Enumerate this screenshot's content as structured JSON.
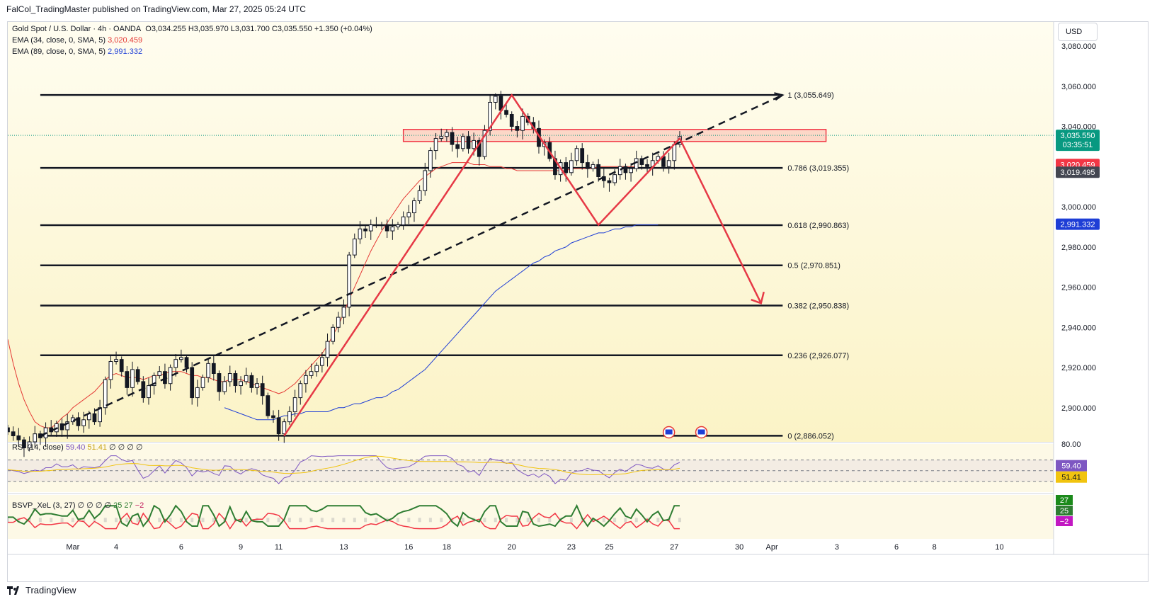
{
  "header": {
    "publisher": "FalCol_TradingMaster published on TradingView.com, Mar 27, 2025 05:24 UTC"
  },
  "footer": {
    "brand": "TradingView"
  },
  "currency_button": "USD",
  "legend": {
    "symbol": "Gold Spot / U.S. Dollar · 4h · OANDA",
    "ohlc": "O3,034.255  H3,035.970  L3,031.700  C3,035.550  +1.350 (+0.04%)",
    "ema34_label": "EMA (34, close, 0, SMA, 5)",
    "ema34_value": "3,020.459",
    "ema89_label": "EMA (89, close, 0, SMA, 5)",
    "ema89_value": "2,991.332",
    "rsi_label": "RSI (14, close)",
    "rsi_v1": "59.40",
    "rsi_v2": "51.41",
    "rsi_rest": "∅ ∅ ∅ ∅",
    "bsvp_label": "BSVP_XeL (3, 27)",
    "bsvp_rest": "∅ ∅ ∅ ∅",
    "bsvp_v1": "25",
    "bsvp_v2": "27",
    "bsvp_v3": "−2"
  },
  "colors": {
    "bull": "#089981",
    "bear": "#f23645",
    "candle_body": "#131722",
    "ema34": "#e53935",
    "ema89": "#1e3ed6",
    "pattern": "#e63946",
    "rsi": "#7e57c2",
    "rsi_ma": "#f1c40f"
  },
  "chart_data": {
    "type": "candlestick",
    "title": "Gold Spot / U.S. Dollar · 4h · OANDA",
    "ylim": [
      2883,
      3092
    ],
    "y_ticks": [
      2900,
      2920,
      2940,
      2960,
      2980,
      3000,
      3020,
      3040,
      3060,
      3080
    ],
    "y_tick_labels": [
      "2,900.000",
      "2,920.000",
      "2,940.000",
      "2,960.000",
      "2,980.000",
      "3,000.000",
      "3,020.000",
      "3,040.000",
      "3,060.000",
      "3,080.000"
    ],
    "x_ticks": [
      {
        "label": "Mar",
        "i": 12
      },
      {
        "label": "4",
        "i": 20
      },
      {
        "label": "6",
        "i": 32
      },
      {
        "label": "9",
        "i": 43
      },
      {
        "label": "11",
        "i": 50
      },
      {
        "label": "13",
        "i": 62
      },
      {
        "label": "16",
        "i": 74
      },
      {
        "label": "18",
        "i": 81
      },
      {
        "label": "20",
        "i": 93
      },
      {
        "label": "23",
        "i": 104
      },
      {
        "label": "25",
        "i": 111
      },
      {
        "label": "27",
        "i": 123
      },
      {
        "label": "30",
        "i": 135
      },
      {
        "label": "Apr",
        "i": 141
      },
      {
        "label": "3",
        "i": 153
      },
      {
        "label": "6",
        "i": 164
      },
      {
        "label": "8",
        "i": 171
      },
      {
        "label": "10",
        "i": 183
      }
    ],
    "x_range": [
      0,
      193
    ],
    "fib_levels": [
      {
        "ratio": "1",
        "value": 3055.649,
        "label": "1 (3,055.649)"
      },
      {
        "ratio": "0.786",
        "value": 3019.355,
        "label": "0.786 (3,019.355)"
      },
      {
        "ratio": "0.618",
        "value": 2990.863,
        "label": "0.618 (2,990.863)"
      },
      {
        "ratio": "0.5",
        "value": 2970.851,
        "label": "0.5 (2,970.851)"
      },
      {
        "ratio": "0.382",
        "value": 2950.838,
        "label": "0.382 (2,950.838)"
      },
      {
        "ratio": "0.236",
        "value": 2926.077,
        "label": "0.236 (2,926.077)"
      },
      {
        "ratio": "0",
        "value": 2886.052,
        "label": "0 (2,886.052)"
      }
    ],
    "fib_x_range": [
      6,
      143
    ],
    "resistance_zone": {
      "i_from": 73,
      "i_to": 151,
      "low": 3032.5,
      "high": 3038.5
    },
    "closes": [
      2888,
      2886,
      2884,
      2880,
      2883,
      2887,
      2885,
      2890,
      2888,
      2892,
      2889,
      2893,
      2895,
      2891,
      2894,
      2897,
      2893,
      2900,
      2914,
      2923,
      2924,
      2918,
      2910,
      2919,
      2913,
      2905,
      2911,
      2916,
      2918,
      2912,
      2920,
      2924,
      2925,
      2920,
      2905,
      2910,
      2915,
      2922,
      2917,
      2908,
      2913,
      2917,
      2911,
      2913,
      2916,
      2910,
      2912,
      2906,
      2896,
      2895,
      2887,
      2893,
      2898,
      2905,
      2912,
      2916,
      2918,
      2921,
      2925,
      2933,
      2940,
      2945,
      2950,
      2976,
      2984,
      2989,
      2988,
      2991,
      2991,
      2991,
      2988,
      2990,
      2991,
      2995,
      2997,
      3003,
      3008,
      3018,
      3028,
      3034,
      3035,
      3037,
      3031,
      3029,
      3035,
      3029,
      3033,
      3025,
      3038,
      3052,
      3055,
      3048,
      3046,
      3040,
      3038,
      3045,
      3042,
      3039,
      3030,
      3032,
      3024,
      3016,
      3022,
      3017,
      3023,
      3029,
      3022,
      3019,
      3021,
      3015,
      3013,
      3012,
      3016,
      3020,
      3017,
      3019,
      3024,
      3021,
      3020,
      3023,
      3025,
      3020,
      3023,
      3031,
      3035
    ],
    "current_price": {
      "value": 3035.55,
      "label": "3,035.550",
      "countdown": "03:35:51"
    },
    "price_tags": [
      {
        "value": 3020.459,
        "label": "3,020.459",
        "color": "#f23645"
      },
      {
        "value": 3019.495,
        "label": "3,019.495",
        "color": "#434651"
      },
      {
        "value": 2991.332,
        "label": "2,991.332",
        "color": "#1e3ed6"
      }
    ],
    "ema34": [
      2934,
      2922,
      2912,
      2904,
      2898,
      2893,
      2891,
      2890,
      2890,
      2892,
      2895,
      2897,
      2900,
      2902,
      2904,
      2906,
      2908,
      2911,
      2914,
      2916,
      2917,
      2916,
      2915,
      2915,
      2915,
      2914,
      2915,
      2916,
      2916,
      2917,
      2918,
      2918,
      2918,
      2917,
      2916,
      2916,
      2915,
      2915,
      2914,
      2913,
      2913,
      2914,
      2914,
      2914,
      2913,
      2912,
      2911,
      2910,
      2909,
      2908,
      2907,
      2908,
      2910,
      2912,
      2915,
      2918,
      2921,
      2924,
      2927,
      2931,
      2936,
      2941,
      2947,
      2954,
      2960,
      2966,
      2972,
      2978,
      2983,
      2988,
      2992,
      2996,
      3000,
      3004,
      3007,
      3010,
      3013,
      3015,
      3017,
      3019,
      3020,
      3021,
      3022,
      3022,
      3022,
      3022,
      3021,
      3021,
      3021,
      3020,
      3020,
      3020,
      3019,
      3019,
      3018,
      3018,
      3018,
      3018,
      3018,
      3018,
      3018,
      3018,
      3018,
      3018,
      3019,
      3019,
      3019,
      3019,
      3019,
      3020,
      3020,
      3020,
      3020,
      3020,
      3020,
      3020,
      3020
    ],
    "ema_start_index": 0,
    "ema89": [
      2900,
      2899,
      2898,
      2897,
      2896,
      2895,
      2894,
      2894,
      2894,
      2894,
      2895,
      2896,
      2896,
      2897,
      2897,
      2898,
      2898,
      2898,
      2898,
      2898,
      2899,
      2900,
      2900,
      2901,
      2902,
      2902,
      2903,
      2904,
      2905,
      2905,
      2906,
      2908,
      2909,
      2911,
      2913,
      2915,
      2917,
      2919,
      2922,
      2925,
      2928,
      2931,
      2934,
      2937,
      2940,
      2943,
      2946,
      2949,
      2952,
      2955,
      2958,
      2960,
      2962,
      2964,
      2966,
      2968,
      2970,
      2972,
      2973,
      2975,
      2976,
      2978,
      2979,
      2980,
      2982,
      2983,
      2984,
      2985,
      2986,
      2987,
      2987,
      2988,
      2989,
      2989,
      2990,
      2990,
      2991,
      2991,
      2991,
      2991,
      2991
    ],
    "ema89_start_index": 40,
    "pattern_line": [
      {
        "i": 51,
        "v": 2886
      },
      {
        "i": 93,
        "v": 3055.6
      },
      {
        "i": 109,
        "v": 2991
      },
      {
        "i": 124,
        "v": 3034
      },
      {
        "i": 139,
        "v": 2952
      }
    ],
    "trendline": [
      {
        "i": 6,
        "v": 2886
      },
      {
        "i": 143,
        "v": 3055.6
      }
    ],
    "rsi": {
      "label": "RSI (14, close)",
      "upper": "80.00",
      "value": "59.40",
      "ma": "51.41"
    },
    "bsvp": {
      "values": [
        "27",
        "25",
        "−2"
      ]
    }
  }
}
